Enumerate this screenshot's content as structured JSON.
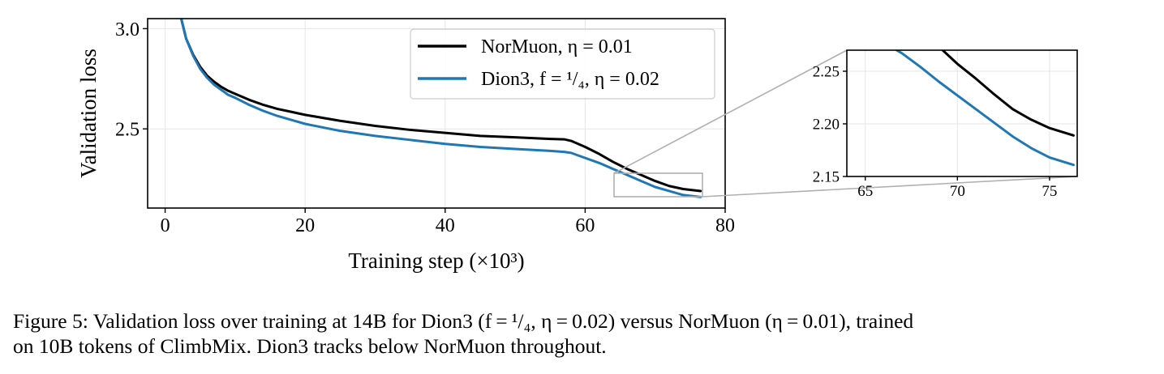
{
  "figure": {
    "caption_line1": "Figure 5: Validation loss over training at 14B for Dion3 (f = ¹/₄, η = 0.02) versus NorMuon (η = 0.01), trained",
    "caption_line2": "on 10B tokens of ClimbMix. Dion3 tracks below NorMuon throughout."
  },
  "chart_data": [
    {
      "type": "line",
      "xlabel": "Training step (×10³)",
      "ylabel": "Validation loss",
      "xlim": [
        -2.5,
        80
      ],
      "ylim": [
        2.105,
        3.05
      ],
      "xticks": [
        0,
        20,
        40,
        60,
        80
      ],
      "xtick_labels": [
        "0",
        "20",
        "40",
        "60",
        "80"
      ],
      "yticks": [
        2.5,
        3.0
      ],
      "ytick_labels": [
        "2.5",
        "3.0"
      ],
      "grid": true,
      "legend_position": "top-right",
      "series": [
        {
          "name": "NorMuon, η = 0.01",
          "color": "#000000",
          "x": [
            2.3,
            3,
            4,
            5,
            6,
            7,
            8,
            9,
            10,
            12,
            14,
            16,
            18,
            20,
            25,
            30,
            35,
            40,
            45,
            50,
            55,
            57,
            58,
            60,
            62,
            64,
            66,
            68,
            70,
            72,
            74,
            76.5
          ],
          "y": [
            3.05,
            2.95,
            2.87,
            2.81,
            2.765,
            2.735,
            2.71,
            2.69,
            2.675,
            2.645,
            2.62,
            2.6,
            2.585,
            2.57,
            2.54,
            2.515,
            2.495,
            2.48,
            2.465,
            2.458,
            2.45,
            2.448,
            2.44,
            2.41,
            2.375,
            2.335,
            2.3,
            2.27,
            2.24,
            2.215,
            2.2,
            2.19
          ]
        },
        {
          "name": "Dion3, f = ¹/₄, η = 0.02",
          "color": "#1f77b4",
          "x": [
            2.3,
            3,
            4,
            5,
            6,
            7,
            8,
            9,
            10,
            12,
            14,
            16,
            18,
            20,
            25,
            30,
            35,
            40,
            45,
            50,
            55,
            57,
            58,
            60,
            62,
            64,
            66,
            68,
            70,
            72,
            74,
            76.5
          ],
          "y": [
            3.05,
            2.95,
            2.865,
            2.8,
            2.755,
            2.72,
            2.695,
            2.67,
            2.655,
            2.62,
            2.59,
            2.565,
            2.545,
            2.525,
            2.49,
            2.465,
            2.445,
            2.425,
            2.41,
            2.4,
            2.39,
            2.385,
            2.38,
            2.355,
            2.33,
            2.3,
            2.27,
            2.24,
            2.21,
            2.19,
            2.17,
            2.16
          ]
        }
      ]
    },
    {
      "type": "line",
      "title": "",
      "xlim": [
        64,
        76.5
      ],
      "ylim": [
        2.15,
        2.27
      ],
      "xticks": [
        65,
        70,
        75
      ],
      "xtick_labels": [
        "65",
        "70",
        "75"
      ],
      "yticks": [
        2.15,
        2.2,
        2.25
      ],
      "ytick_labels": [
        "2.15",
        "2.20",
        "2.25"
      ],
      "grid": true,
      "series": [
        {
          "color": "#000000",
          "x": [
            69.2,
            70,
            71,
            72,
            73,
            74,
            75,
            76.3
          ],
          "y": [
            2.27,
            2.257,
            2.243,
            2.228,
            2.214,
            2.204,
            2.196,
            2.189
          ]
        },
        {
          "color": "#1f77b4",
          "x": [
            66.7,
            67,
            68,
            69,
            70,
            71,
            72,
            73,
            74,
            75,
            76.3
          ],
          "y": [
            2.27,
            2.267,
            2.254,
            2.24,
            2.227,
            2.214,
            2.201,
            2.188,
            2.177,
            2.168,
            2.161
          ]
        }
      ]
    }
  ]
}
